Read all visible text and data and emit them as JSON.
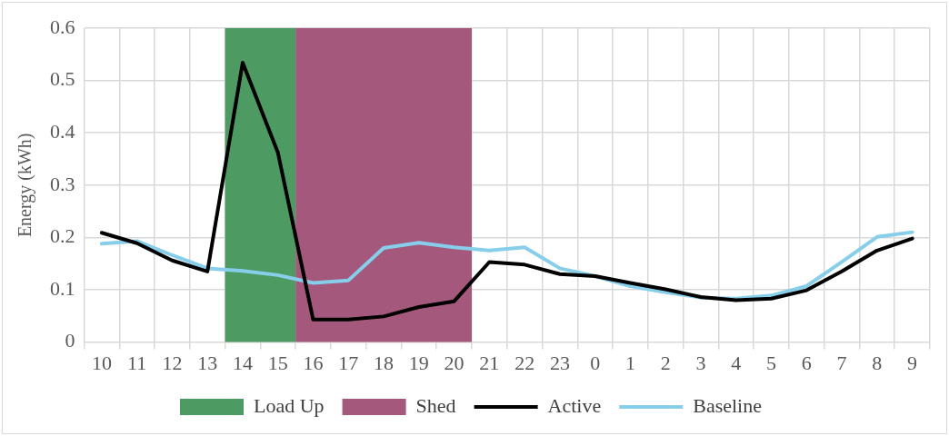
{
  "chart_data": {
    "type": "line",
    "ylabel": "Energy (kWh)",
    "categories": [
      "10",
      "11",
      "12",
      "13",
      "14",
      "15",
      "16",
      "17",
      "18",
      "19",
      "20",
      "21",
      "22",
      "23",
      "0",
      "1",
      "2",
      "3",
      "4",
      "5",
      "6",
      "7",
      "8",
      "9"
    ],
    "bands": [
      {
        "axis": "x",
        "from": "14",
        "to": "15",
        "label": "Load Up",
        "color": "#4e9a63"
      },
      {
        "axis": "x",
        "from": "16",
        "to": "20",
        "label": "Shed",
        "color": "#a4587c"
      }
    ],
    "series": [
      {
        "name": "Active",
        "color": "#000000",
        "values": [
          0.209,
          0.189,
          0.156,
          0.135,
          0.534,
          0.362,
          0.043,
          0.043,
          0.049,
          0.067,
          0.078,
          0.153,
          0.148,
          0.13,
          0.126,
          0.113,
          0.101,
          0.086,
          0.08,
          0.083,
          0.099,
          0.135,
          0.175,
          0.198
        ]
      },
      {
        "name": "Baseline",
        "color": "#87ceeb",
        "values": [
          0.188,
          0.193,
          0.166,
          0.141,
          0.136,
          0.128,
          0.113,
          0.118,
          0.18,
          0.19,
          0.181,
          0.175,
          0.181,
          0.141,
          0.126,
          0.107,
          0.095,
          0.085,
          0.083,
          0.089,
          0.107,
          0.153,
          0.201,
          0.21
        ]
      }
    ],
    "ylim": [
      0,
      0.6
    ],
    "yticks": [
      0,
      0.1,
      0.2,
      0.3,
      0.4,
      0.5,
      0.6
    ],
    "grid": true,
    "legend": "bottom",
    "marker": "none",
    "line_style": "solid"
  }
}
